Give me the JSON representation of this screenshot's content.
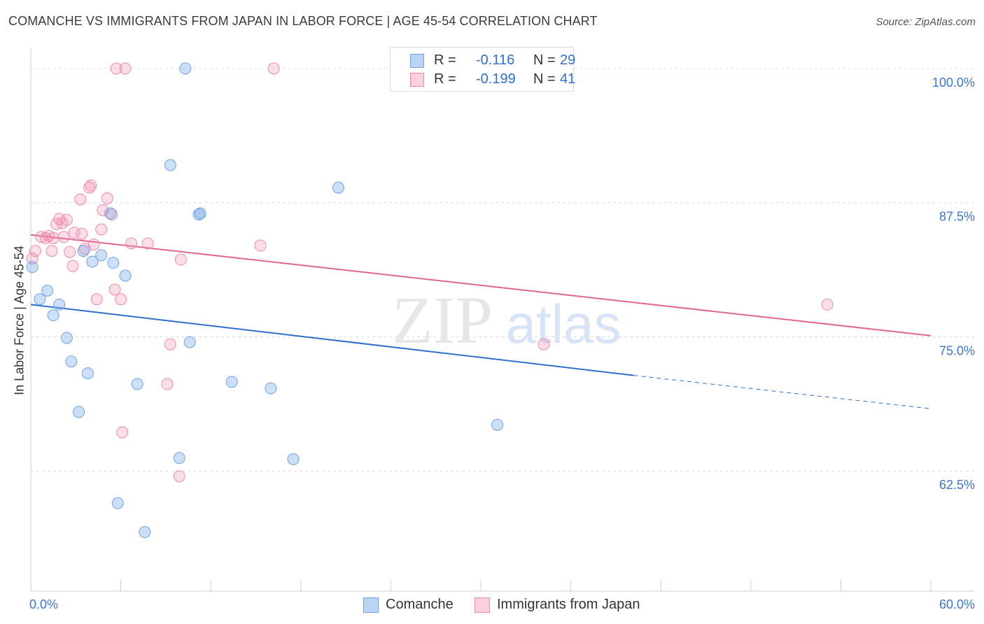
{
  "header": {
    "title": "COMANCHE VS IMMIGRANTS FROM JAPAN IN LABOR FORCE | AGE 45-54 CORRELATION CHART",
    "source": "Source: ZipAtlas.com"
  },
  "watermark": {
    "zip": "ZIP",
    "atlas": "atlas"
  },
  "legend": {
    "r_label": "R =",
    "n_label": "N =",
    "rows": [
      {
        "series": "Comanche",
        "r": "-0.116",
        "n": "29"
      },
      {
        "series": "Immigrants from Japan",
        "r": "-0.199",
        "n": "41"
      }
    ]
  },
  "chart_data": {
    "type": "scatter",
    "title": "COMANCHE VS IMMIGRANTS FROM JAPAN IN LABOR FORCE | AGE 45-54 CORRELATION CHART",
    "xlabel": "",
    "ylabel": "In Labor Force | Age 45-54",
    "xlim": [
      0,
      60
    ],
    "ylim": [
      51.3,
      101.3
    ],
    "x_tick_labels": [
      "0.0%",
      "60.0%"
    ],
    "y_ticks": [
      62.5,
      75.0,
      87.5,
      100.0
    ],
    "y_tick_labels": [
      "62.5%",
      "75.0%",
      "87.5%",
      "100.0%"
    ],
    "grid": true,
    "colors": {
      "comanche": "#6fa3e6",
      "japan": "#f08aa8",
      "comanche_line": "#2f6fd0",
      "japan_line": "#e0668f",
      "axis_text": "#3b74d0"
    },
    "series": [
      {
        "name": "Comanche",
        "r": -0.116,
        "n": 29,
        "trend": {
          "x0": 0,
          "y0": 78.0,
          "x1": 40.2,
          "y1": 71.4,
          "dashed_to_x": 60,
          "dashed_to_y": 68.3
        },
        "points": [
          {
            "x": 0.1,
            "y": 81.5
          },
          {
            "x": 0.6,
            "y": 78.5
          },
          {
            "x": 1.1,
            "y": 79.3
          },
          {
            "x": 1.9,
            "y": 78.0
          },
          {
            "x": 1.5,
            "y": 77.0
          },
          {
            "x": 2.4,
            "y": 74.9
          },
          {
            "x": 2.7,
            "y": 72.7
          },
          {
            "x": 3.8,
            "y": 71.6
          },
          {
            "x": 3.2,
            "y": 68.0
          },
          {
            "x": 3.5,
            "y": 83.0
          },
          {
            "x": 4.1,
            "y": 82.0
          },
          {
            "x": 4.7,
            "y": 82.6
          },
          {
            "x": 5.5,
            "y": 81.9
          },
          {
            "x": 6.3,
            "y": 80.7
          },
          {
            "x": 5.3,
            "y": 86.5
          },
          {
            "x": 7.1,
            "y": 70.6
          },
          {
            "x": 10.3,
            "y": 100.0
          },
          {
            "x": 9.3,
            "y": 91.0
          },
          {
            "x": 11.3,
            "y": 86.5
          },
          {
            "x": 11.2,
            "y": 86.4
          },
          {
            "x": 10.6,
            "y": 74.5
          },
          {
            "x": 13.4,
            "y": 70.8
          },
          {
            "x": 16.0,
            "y": 70.2
          },
          {
            "x": 20.5,
            "y": 88.9
          },
          {
            "x": 9.9,
            "y": 63.7
          },
          {
            "x": 17.5,
            "y": 63.6
          },
          {
            "x": 31.1,
            "y": 66.8
          },
          {
            "x": 5.8,
            "y": 59.5
          },
          {
            "x": 7.6,
            "y": 56.8
          }
        ]
      },
      {
        "name": "Immigrants from Japan",
        "r": -0.199,
        "n": 41,
        "trend": {
          "x0": 0,
          "y0": 84.5,
          "x1": 60,
          "y1": 75.1
        },
        "points": [
          {
            "x": 0.1,
            "y": 82.3
          },
          {
            "x": 0.3,
            "y": 83.0
          },
          {
            "x": 0.7,
            "y": 84.3
          },
          {
            "x": 1.0,
            "y": 84.2
          },
          {
            "x": 1.2,
            "y": 84.4
          },
          {
            "x": 1.4,
            "y": 83.0
          },
          {
            "x": 1.7,
            "y": 85.5
          },
          {
            "x": 1.9,
            "y": 86.0
          },
          {
            "x": 2.1,
            "y": 85.6
          },
          {
            "x": 2.4,
            "y": 85.9
          },
          {
            "x": 2.6,
            "y": 82.9
          },
          {
            "x": 2.8,
            "y": 81.6
          },
          {
            "x": 2.9,
            "y": 84.7
          },
          {
            "x": 3.4,
            "y": 84.6
          },
          {
            "x": 3.3,
            "y": 87.8
          },
          {
            "x": 3.9,
            "y": 88.9
          },
          {
            "x": 4.0,
            "y": 89.1
          },
          {
            "x": 4.2,
            "y": 83.6
          },
          {
            "x": 4.4,
            "y": 78.5
          },
          {
            "x": 4.8,
            "y": 86.8
          },
          {
            "x": 4.7,
            "y": 85.0
          },
          {
            "x": 5.1,
            "y": 87.9
          },
          {
            "x": 5.4,
            "y": 86.4
          },
          {
            "x": 5.6,
            "y": 79.4
          },
          {
            "x": 6.0,
            "y": 78.5
          },
          {
            "x": 5.7,
            "y": 100.0
          },
          {
            "x": 6.3,
            "y": 100.0
          },
          {
            "x": 6.7,
            "y": 83.7
          },
          {
            "x": 7.8,
            "y": 83.7
          },
          {
            "x": 6.1,
            "y": 66.1
          },
          {
            "x": 9.3,
            "y": 74.3
          },
          {
            "x": 9.1,
            "y": 70.6
          },
          {
            "x": 10.0,
            "y": 82.2
          },
          {
            "x": 9.9,
            "y": 62.0
          },
          {
            "x": 16.2,
            "y": 100.0
          },
          {
            "x": 15.3,
            "y": 83.5
          },
          {
            "x": 34.2,
            "y": 74.3
          },
          {
            "x": 53.1,
            "y": 78.0
          },
          {
            "x": 3.6,
            "y": 83.2
          },
          {
            "x": 2.2,
            "y": 84.3
          },
          {
            "x": 1.5,
            "y": 84.2
          }
        ]
      }
    ]
  }
}
